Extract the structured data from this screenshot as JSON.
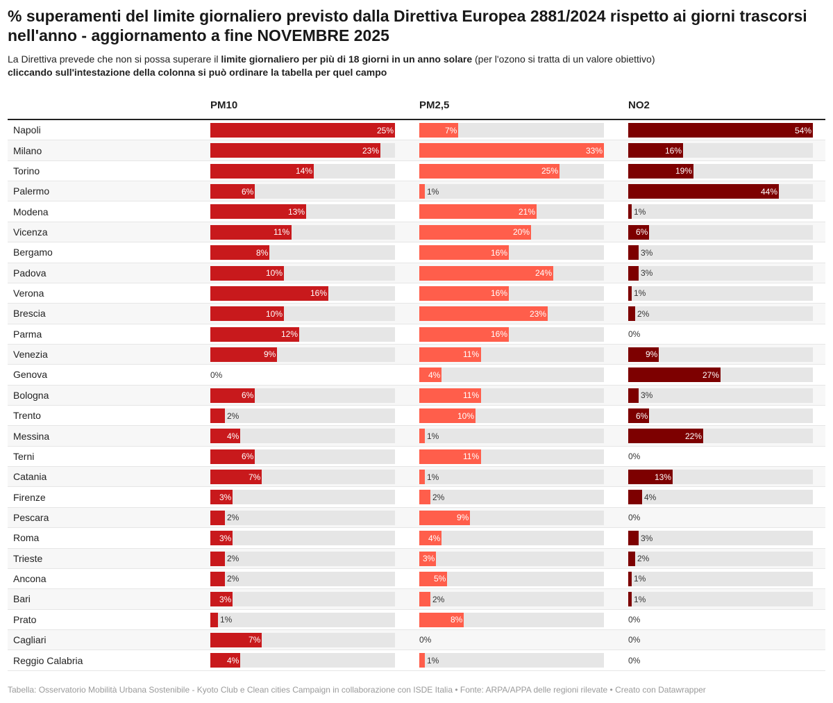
{
  "header": {
    "title": "% superamenti del limite giornaliero previsto dalla Direttiva Europea 2881/2024 rispetto ai giorni trascorsi nell'anno - aggiornamento a fine NOVEMBRE 2025",
    "subtitle_part1": "La Direttiva prevede che non si possa superare il ",
    "subtitle_bold": "limite giornaliero per più di 18 giorni in un anno solare",
    "subtitle_part2": " (per l'ozono si tratta di un valore obiettivo)",
    "subtitle_line2": "cliccando sull'intestazione della colonna si può ordinare la tabella per quel campo"
  },
  "colors": {
    "pm10": "#c8191c",
    "pm25": "#ff5e4b",
    "no2": "#7d0000",
    "track": "#e6e6e6"
  },
  "chart_data": {
    "type": "table",
    "columns": [
      "PM10",
      "PM2,5",
      "NO2"
    ],
    "value_unit": "%",
    "scale_max": [
      25,
      33,
      54
    ],
    "rows": [
      {
        "city": "Napoli",
        "values": [
          25,
          7,
          54
        ]
      },
      {
        "city": "Milano",
        "values": [
          23,
          33,
          16
        ]
      },
      {
        "city": "Torino",
        "values": [
          14,
          25,
          19
        ]
      },
      {
        "city": "Palermo",
        "values": [
          6,
          1,
          44
        ]
      },
      {
        "city": "Modena",
        "values": [
          13,
          21,
          1
        ]
      },
      {
        "city": "Vicenza",
        "values": [
          11,
          20,
          6
        ]
      },
      {
        "city": "Bergamo",
        "values": [
          8,
          16,
          3
        ]
      },
      {
        "city": "Padova",
        "values": [
          10,
          24,
          3
        ]
      },
      {
        "city": "Verona",
        "values": [
          16,
          16,
          1
        ]
      },
      {
        "city": "Brescia",
        "values": [
          10,
          23,
          2
        ]
      },
      {
        "city": "Parma",
        "values": [
          12,
          16,
          0
        ]
      },
      {
        "city": "Venezia",
        "values": [
          9,
          11,
          9
        ]
      },
      {
        "city": "Genova",
        "values": [
          0,
          4,
          27
        ]
      },
      {
        "city": "Bologna",
        "values": [
          6,
          11,
          3
        ]
      },
      {
        "city": "Trento",
        "values": [
          2,
          10,
          6
        ]
      },
      {
        "city": "Messina",
        "values": [
          4,
          1,
          22
        ]
      },
      {
        "city": "Terni",
        "values": [
          6,
          11,
          0
        ]
      },
      {
        "city": "Catania",
        "values": [
          7,
          1,
          13
        ]
      },
      {
        "city": "Firenze",
        "values": [
          3,
          2,
          4
        ]
      },
      {
        "city": "Pescara",
        "values": [
          2,
          9,
          0
        ]
      },
      {
        "city": "Roma",
        "values": [
          3,
          4,
          3
        ]
      },
      {
        "city": "Trieste",
        "values": [
          2,
          3,
          2
        ]
      },
      {
        "city": "Ancona",
        "values": [
          2,
          5,
          1
        ]
      },
      {
        "city": "Bari",
        "values": [
          3,
          2,
          1
        ]
      },
      {
        "city": "Prato",
        "values": [
          1,
          8,
          0
        ]
      },
      {
        "city": "Cagliari",
        "values": [
          7,
          0,
          0
        ]
      },
      {
        "city": "Reggio Calabria",
        "values": [
          4,
          1,
          0
        ]
      }
    ]
  },
  "footer": {
    "text": "Tabella: Osservatorio Mobilità Urbana Sostenibile - Kyoto Club e Clean cities Campaign in collaborazione con ISDE Italia • Fonte: ARPA/APPA delle regioni rilevate • Creato con Datawrapper"
  }
}
